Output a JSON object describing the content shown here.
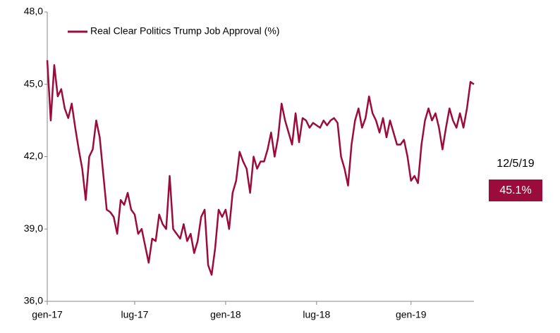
{
  "chart_data": {
    "type": "line",
    "legend": "Real Clear Politics Trump Job Approval (%)",
    "annotations": [
      "12/5/19",
      "45.1%"
    ],
    "color": "#9b0b3c",
    "ylim": [
      36,
      48
    ],
    "yticks": [
      {
        "value": 36,
        "label": "36,0"
      },
      {
        "value": 39,
        "label": "39,0"
      },
      {
        "value": 42,
        "label": "42,0"
      },
      {
        "value": 45,
        "label": "45,0"
      },
      {
        "value": 48,
        "label": "48,0"
      }
    ],
    "grid": false,
    "categories": [
      "gen-17",
      null,
      null,
      null,
      null,
      null,
      null,
      null,
      null,
      null,
      null,
      null,
      null,
      null,
      null,
      null,
      null,
      null,
      null,
      null,
      null,
      null,
      null,
      null,
      null,
      "lug-17",
      null,
      null,
      null,
      null,
      null,
      null,
      null,
      null,
      null,
      null,
      null,
      null,
      null,
      null,
      null,
      null,
      null,
      null,
      null,
      null,
      null,
      null,
      null,
      null,
      null,
      "gen-18",
      null,
      null,
      null,
      null,
      null,
      null,
      null,
      null,
      null,
      null,
      null,
      null,
      null,
      null,
      null,
      null,
      null,
      null,
      null,
      null,
      null,
      null,
      null,
      null,
      null,
      "lug-18",
      null,
      null,
      null,
      null,
      null,
      null,
      null,
      null,
      null,
      null,
      null,
      null,
      null,
      null,
      null,
      null,
      null,
      null,
      null,
      null,
      null,
      null,
      null,
      null,
      null,
      null,
      "gen-19",
      null,
      null,
      null,
      null,
      null,
      null,
      null,
      null,
      null,
      null,
      null,
      null,
      null,
      null,
      null,
      null,
      null,
      null
    ],
    "values": [
      46.0,
      43.5,
      45.8,
      44.5,
      44.8,
      44.0,
      43.6,
      44.2,
      43.2,
      42.3,
      41.5,
      40.2,
      42.0,
      42.3,
      43.5,
      42.8,
      41.3,
      39.8,
      39.7,
      39.5,
      38.8,
      40.2,
      40.0,
      40.5,
      39.8,
      39.6,
      38.8,
      39.0,
      38.3,
      37.6,
      38.6,
      38.5,
      39.6,
      39.2,
      39.0,
      41.2,
      39.0,
      38.8,
      38.6,
      39.2,
      38.5,
      38.8,
      38.0,
      38.5,
      39.5,
      39.8,
      37.5,
      37.1,
      38.2,
      39.8,
      39.5,
      39.8,
      39.0,
      40.5,
      41.0,
      42.2,
      41.8,
      41.5,
      40.5,
      42.0,
      41.5,
      41.8,
      41.8,
      42.3,
      43.0,
      42.0,
      42.8,
      44.2,
      43.5,
      43.0,
      42.5,
      43.8,
      42.6,
      43.6,
      43.5,
      43.2,
      43.4,
      43.3,
      43.2,
      43.5,
      43.3,
      43.5,
      43.6,
      43.4,
      42.0,
      41.5,
      40.8,
      42.5,
      43.5,
      44.0,
      43.2,
      43.6,
      44.5,
      43.8,
      43.5,
      43.0,
      43.6,
      42.8,
      43.5,
      43.0,
      42.5,
      42.5,
      42.7,
      42.0,
      41.0,
      41.2,
      40.9,
      42.5,
      43.5,
      44.0,
      43.5,
      43.8,
      43.2,
      42.3,
      43.2,
      44.0,
      43.5,
      43.2,
      43.8,
      43.2,
      44.0,
      45.1,
      45.0
    ]
  }
}
